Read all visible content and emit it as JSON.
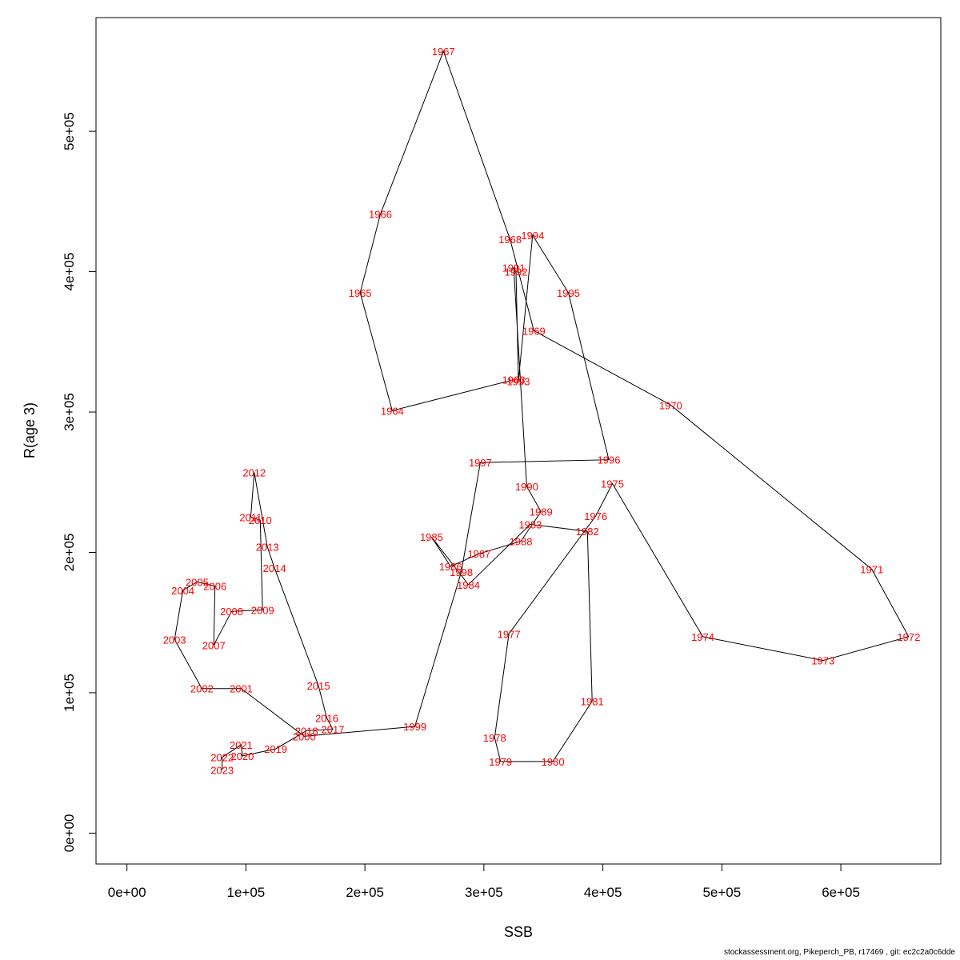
{
  "chart_data": {
    "type": "line",
    "xlabel": "SSB",
    "ylabel": "R(age 3)",
    "xlim": [
      -26000,
      684000
    ],
    "ylim": [
      -22000,
      581000
    ],
    "x_ticks": [
      0,
      100000,
      200000,
      300000,
      400000,
      500000,
      600000
    ],
    "x_tick_labels": [
      "0e+00",
      "1e+05",
      "2e+05",
      "3e+05",
      "4e+05",
      "5e+05",
      "6e+05"
    ],
    "y_ticks": [
      0,
      100000,
      200000,
      300000,
      400000,
      500000
    ],
    "y_tick_labels": [
      "0e+00",
      "1e+05",
      "2e+05",
      "3e+05",
      "4e+05",
      "5e+05"
    ],
    "grid": false,
    "legend": "none",
    "line_color": "#000000",
    "label_color": "#ff0000",
    "points": [
      {
        "year": "1963",
        "x": 325000,
        "y": 323000
      },
      {
        "year": "1964",
        "x": 223000,
        "y": 301000
      },
      {
        "year": "1965",
        "x": 196000,
        "y": 385000
      },
      {
        "year": "1966",
        "x": 213000,
        "y": 441000
      },
      {
        "year": "1967",
        "x": 266000,
        "y": 557000
      },
      {
        "year": "1968",
        "x": 322000,
        "y": 423000
      },
      {
        "year": "1969",
        "x": 342000,
        "y": 358000
      },
      {
        "year": "1970",
        "x": 457000,
        "y": 305000
      },
      {
        "year": "1971",
        "x": 626000,
        "y": 188000
      },
      {
        "year": "1972",
        "x": 657000,
        "y": 140000
      },
      {
        "year": "1973",
        "x": 585000,
        "y": 123000
      },
      {
        "year": "1974",
        "x": 484000,
        "y": 140000
      },
      {
        "year": "1975",
        "x": 408000,
        "y": 249000
      },
      {
        "year": "1976",
        "x": 394000,
        "y": 226000
      },
      {
        "year": "1977",
        "x": 321000,
        "y": 142000
      },
      {
        "year": "1978",
        "x": 309000,
        "y": 68000
      },
      {
        "year": "1979",
        "x": 314000,
        "y": 51000
      },
      {
        "year": "1980",
        "x": 358000,
        "y": 51000
      },
      {
        "year": "1981",
        "x": 391000,
        "y": 94000
      },
      {
        "year": "1982",
        "x": 387000,
        "y": 215000
      },
      {
        "year": "1983",
        "x": 339000,
        "y": 220000
      },
      {
        "year": "1984",
        "x": 287000,
        "y": 177000
      },
      {
        "year": "1985",
        "x": 256000,
        "y": 211000
      },
      {
        "year": "1986",
        "x": 272000,
        "y": 190000
      },
      {
        "year": "1987",
        "x": 296000,
        "y": 199000
      },
      {
        "year": "1988",
        "x": 331000,
        "y": 208000
      },
      {
        "year": "1989",
        "x": 348000,
        "y": 229000
      },
      {
        "year": "1990",
        "x": 336000,
        "y": 247000
      },
      {
        "year": "1991",
        "x": 325000,
        "y": 403000
      },
      {
        "year": "1992",
        "x": 327000,
        "y": 400000
      },
      {
        "year": "1993",
        "x": 329000,
        "y": 322000
      },
      {
        "year": "1994",
        "x": 341000,
        "y": 426000
      },
      {
        "year": "1995",
        "x": 371000,
        "y": 385000
      },
      {
        "year": "1996",
        "x": 405000,
        "y": 266000
      },
      {
        "year": "1997",
        "x": 297000,
        "y": 264000
      },
      {
        "year": "1998",
        "x": 281000,
        "y": 186000
      },
      {
        "year": "1999",
        "x": 242000,
        "y": 76000
      },
      {
        "year": "2000",
        "x": 149000,
        "y": 69000
      },
      {
        "year": "2001",
        "x": 96000,
        "y": 103000
      },
      {
        "year": "2002",
        "x": 63000,
        "y": 103000
      },
      {
        "year": "2003",
        "x": 40000,
        "y": 138000
      },
      {
        "year": "2004",
        "x": 47000,
        "y": 173000
      },
      {
        "year": "2005",
        "x": 59000,
        "y": 179000
      },
      {
        "year": "2006",
        "x": 74000,
        "y": 176000
      },
      {
        "year": "2007",
        "x": 73000,
        "y": 134000
      },
      {
        "year": "2008",
        "x": 88000,
        "y": 158000
      },
      {
        "year": "2009",
        "x": 114000,
        "y": 159000
      },
      {
        "year": "2010",
        "x": 112000,
        "y": 223000
      },
      {
        "year": "2011",
        "x": 104000,
        "y": 225000
      },
      {
        "year": "2012",
        "x": 107000,
        "y": 257000
      },
      {
        "year": "2013",
        "x": 118000,
        "y": 204000
      },
      {
        "year": "2014",
        "x": 124000,
        "y": 189000
      },
      {
        "year": "2015",
        "x": 161000,
        "y": 105000
      },
      {
        "year": "2016",
        "x": 168000,
        "y": 82000
      },
      {
        "year": "2017",
        "x": 173000,
        "y": 74000
      },
      {
        "year": "2018",
        "x": 151000,
        "y": 73000
      },
      {
        "year": "2019",
        "x": 125000,
        "y": 60000
      },
      {
        "year": "2020",
        "x": 97000,
        "y": 55000
      },
      {
        "year": "2021",
        "x": 96000,
        "y": 63000
      },
      {
        "year": "2022",
        "x": 80000,
        "y": 54000
      },
      {
        "year": "2023",
        "x": 80000,
        "y": 45000
      }
    ]
  },
  "footer_text": "stockassessment.org, Pikeperch_PB, r17469 , git: ec2c2a0c6dde"
}
